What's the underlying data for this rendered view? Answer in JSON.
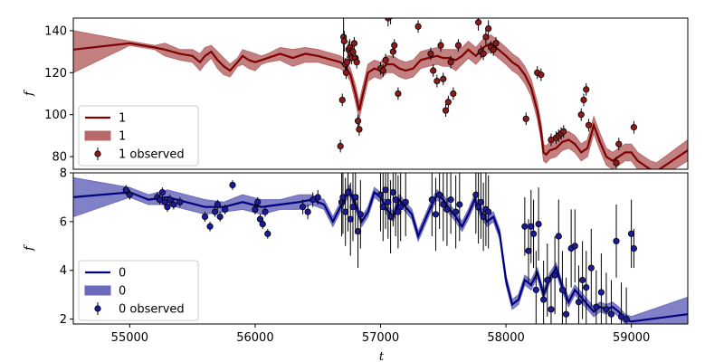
{
  "chart_data": [
    {
      "type": "line",
      "panel": "top",
      "xlabel": "",
      "ylabel": "f",
      "xlim": [
        54550,
        59450
      ],
      "ylim": [
        74,
        146
      ],
      "yticks": [
        80,
        100,
        120,
        140
      ],
      "colors": {
        "line": "#7f0000",
        "band": "#b86a6a",
        "points": "#8b1a1a"
      },
      "legend": {
        "placement": "lower-left",
        "entries": [
          "1",
          "1",
          "1 observed"
        ]
      },
      "series": [
        {
          "name": "1",
          "kind": "model",
          "x": [
            54550,
            55000,
            55200,
            55280,
            55400,
            55500,
            55560,
            55600,
            55650,
            55700,
            55750,
            55800,
            55860,
            55900,
            55950,
            56000,
            56050,
            56100,
            56200,
            56300,
            56400,
            56500,
            56560,
            56620,
            56680,
            56720,
            56760,
            56800,
            56830,
            56860,
            56900,
            56950,
            57000,
            57050,
            57100,
            57150,
            57200,
            57260,
            57320,
            57380,
            57450,
            57500,
            57550,
            57600,
            57650,
            57700,
            57760,
            57820,
            57880,
            57940,
            58000,
            58050,
            58100,
            58150,
            58200,
            58250,
            58280,
            58300,
            58320,
            58350,
            58400,
            58450,
            58500,
            58550,
            58600,
            58650,
            58700,
            58750,
            58800,
            58850,
            58900,
            58950,
            59000,
            59050,
            59100,
            59150,
            59200,
            59450
          ],
          "y": [
            131,
            134,
            132,
            131,
            129,
            128,
            125,
            128,
            130,
            126,
            123,
            121,
            125,
            128,
            126,
            125,
            126,
            127,
            129,
            127,
            129,
            128,
            127,
            126,
            125,
            123,
            119,
            110,
            102,
            110,
            120,
            122,
            121,
            124,
            124,
            122,
            121,
            122,
            126,
            127,
            128,
            127,
            127,
            126,
            128,
            131,
            128,
            132,
            134,
            131,
            128,
            125,
            123,
            119,
            113,
            102,
            92,
            82,
            81,
            83,
            84,
            87,
            88,
            86,
            82,
            84,
            95,
            87,
            80,
            78,
            80,
            82,
            82,
            78,
            76,
            74,
            73,
            83
          ],
          "band_upper": [
            140,
            135,
            133,
            134,
            131,
            131,
            129,
            132,
            133,
            130,
            127,
            124,
            127,
            131,
            130,
            129,
            128,
            129,
            132,
            131,
            132,
            131,
            130,
            129,
            128,
            126,
            122,
            114,
            106,
            114,
            124,
            126,
            125,
            128,
            128,
            126,
            125,
            126,
            130,
            131,
            132,
            131,
            131,
            131,
            132,
            135,
            132,
            136,
            138,
            135,
            132,
            129,
            127,
            123,
            117,
            106,
            96,
            86,
            85,
            87,
            88,
            91,
            92,
            90,
            86,
            88,
            99,
            91,
            84,
            82,
            84,
            86,
            86,
            82,
            80,
            78,
            77,
            88
          ],
          "band_lower": [
            120,
            133,
            131,
            128,
            126,
            125,
            121,
            124,
            127,
            122,
            119,
            118,
            123,
            124,
            122,
            121,
            124,
            125,
            126,
            123,
            125,
            125,
            124,
            123,
            122,
            120,
            116,
            106,
            98,
            106,
            116,
            118,
            117,
            120,
            120,
            118,
            117,
            118,
            122,
            123,
            124,
            123,
            123,
            121,
            124,
            127,
            124,
            128,
            130,
            127,
            124,
            121,
            119,
            115,
            109,
            98,
            88,
            78,
            77,
            79,
            80,
            83,
            84,
            82,
            78,
            80,
            91,
            83,
            76,
            74,
            76,
            78,
            78,
            74,
            72,
            70,
            69,
            78
          ]
        },
        {
          "name": "1 observed",
          "kind": "observed",
          "x": [
            56680,
            56695,
            56705,
            56710,
            56720,
            56725,
            56735,
            56745,
            56755,
            56760,
            56770,
            56780,
            56790,
            56800,
            56810,
            56820,
            56830,
            57000,
            57020,
            57040,
            57060,
            57080,
            57100,
            57110,
            57140,
            57300,
            57400,
            57420,
            57450,
            57480,
            57500,
            57520,
            57540,
            57560,
            57580,
            57620,
            57780,
            57800,
            57820,
            57840,
            57860,
            57880,
            57900,
            57920,
            58160,
            58250,
            58280,
            58360,
            58400,
            58420,
            58440,
            58460,
            58600,
            58620,
            58640,
            58660,
            58880,
            58900,
            59020
          ],
          "y": [
            85,
            107,
            137,
            135,
            124,
            120,
            125,
            131,
            132,
            129,
            127,
            130,
            134,
            127,
            125,
            97,
            93,
            122,
            121,
            126,
            146,
            147,
            130,
            133,
            110,
            142,
            129,
            121,
            116,
            133,
            117,
            102,
            106,
            125,
            110,
            133,
            144,
            130,
            129,
            137,
            141,
            132,
            131,
            134,
            98,
            120,
            119,
            88,
            89,
            90,
            91,
            92,
            100,
            107,
            112,
            95,
            77,
            86,
            94
          ],
          "yerr": [
            3,
            3,
            12,
            5,
            3,
            3,
            3,
            4,
            4,
            3,
            3,
            3,
            3,
            3,
            3,
            3,
            3,
            3,
            3,
            3,
            4,
            4,
            3,
            3,
            3,
            3,
            3,
            3,
            3,
            3,
            3,
            3,
            3,
            3,
            3,
            3,
            4,
            3,
            3,
            4,
            4,
            3,
            3,
            3,
            3,
            3,
            3,
            3,
            3,
            3,
            3,
            3,
            3,
            3,
            3,
            3,
            3,
            3,
            3
          ]
        }
      ]
    },
    {
      "type": "line",
      "panel": "bottom",
      "xlabel": "t",
      "ylabel": "f",
      "xlim": [
        54550,
        59450
      ],
      "ylim": [
        1.8,
        8.0
      ],
      "yticks": [
        2,
        4,
        6,
        8
      ],
      "xticks": [
        55000,
        56000,
        57000,
        58000,
        59000
      ],
      "colors": {
        "line": "#00007f",
        "band": "#6b6bbd",
        "points": "#1a1a9a"
      },
      "legend": {
        "placement": "lower-left",
        "entries": [
          "0",
          "0",
          "0 observed"
        ]
      },
      "series": [
        {
          "name": "0",
          "kind": "model",
          "x": [
            54550,
            55000,
            55150,
            55300,
            55450,
            55600,
            55750,
            55900,
            56050,
            56200,
            56350,
            56450,
            56550,
            56620,
            56700,
            56750,
            56800,
            56850,
            56900,
            56950,
            57000,
            57050,
            57100,
            57150,
            57200,
            57250,
            57300,
            57350,
            57400,
            57450,
            57500,
            57550,
            57600,
            57650,
            57700,
            57750,
            57800,
            57850,
            57900,
            57950,
            58000,
            58050,
            58100,
            58150,
            58200,
            58250,
            58300,
            58350,
            58400,
            58450,
            58500,
            58550,
            58600,
            58650,
            58700,
            58750,
            58800,
            58850,
            58900,
            58950,
            59000,
            59450
          ],
          "y": [
            7.0,
            7.2,
            6.9,
            7.0,
            6.8,
            6.6,
            6.6,
            6.8,
            6.6,
            6.7,
            6.8,
            6.9,
            6.7,
            6.0,
            6.8,
            7.3,
            6.7,
            6.0,
            6.4,
            7.2,
            7.0,
            6.5,
            6.2,
            6.9,
            6.6,
            6.3,
            5.4,
            6.0,
            6.6,
            7.1,
            6.9,
            6.5,
            6.2,
            5.8,
            6.3,
            6.9,
            6.4,
            6.0,
            6.2,
            5.5,
            3.6,
            2.6,
            2.8,
            3.6,
            3.4,
            3.9,
            3.0,
            3.7,
            4.1,
            3.3,
            2.7,
            3.2,
            2.9,
            2.6,
            2.3,
            2.5,
            2.4,
            2.5,
            2.3,
            2.0,
            1.9,
            2.2
          ],
          "band_upper": [
            7.8,
            7.4,
            7.1,
            7.3,
            7.1,
            6.9,
            6.8,
            7.1,
            6.9,
            6.9,
            7.1,
            7.1,
            6.9,
            6.2,
            7.0,
            7.5,
            6.9,
            6.2,
            6.6,
            7.4,
            7.2,
            6.7,
            6.4,
            7.1,
            6.8,
            6.5,
            5.6,
            6.2,
            6.8,
            7.3,
            7.1,
            6.7,
            6.4,
            6.0,
            6.5,
            7.1,
            6.6,
            6.2,
            6.4,
            5.7,
            3.8,
            2.8,
            3.0,
            3.8,
            3.6,
            4.1,
            3.2,
            3.9,
            4.3,
            3.5,
            2.9,
            3.4,
            3.1,
            2.8,
            2.5,
            2.7,
            2.6,
            2.7,
            2.5,
            2.2,
            2.1,
            2.9
          ],
          "band_lower": [
            6.2,
            7.0,
            6.7,
            6.7,
            6.5,
            6.3,
            6.4,
            6.5,
            6.3,
            6.5,
            6.5,
            6.7,
            6.5,
            5.8,
            6.6,
            7.1,
            6.5,
            5.8,
            6.2,
            7.0,
            6.8,
            6.3,
            6.0,
            6.7,
            6.4,
            6.1,
            5.2,
            5.8,
            6.4,
            6.9,
            6.7,
            6.3,
            6.0,
            5.6,
            6.1,
            6.7,
            6.2,
            5.8,
            6.0,
            5.3,
            3.4,
            2.4,
            2.6,
            3.4,
            3.2,
            3.7,
            2.8,
            3.5,
            3.9,
            3.1,
            2.5,
            3.0,
            2.7,
            2.4,
            2.1,
            2.3,
            2.2,
            2.3,
            2.1,
            1.8,
            1.7,
            1.5
          ]
        },
        {
          "name": "0 observed",
          "kind": "observed",
          "x": [
            54970,
            55000,
            55220,
            55240,
            55260,
            55280,
            55300,
            55320,
            55350,
            55400,
            55600,
            55640,
            55680,
            55700,
            55720,
            55760,
            55820,
            56000,
            56020,
            56040,
            56060,
            56080,
            56100,
            56380,
            56420,
            56460,
            56500,
            56690,
            56700,
            56720,
            56740,
            56760,
            56780,
            56800,
            56820,
            56840,
            57000,
            57020,
            57040,
            57060,
            57080,
            57100,
            57120,
            57140,
            57160,
            57200,
            57410,
            57440,
            57470,
            57500,
            57530,
            57560,
            57600,
            57630,
            57760,
            57780,
            57800,
            57820,
            57840,
            57860,
            58150,
            58180,
            58200,
            58220,
            58240,
            58260,
            58300,
            58330,
            58360,
            58390,
            58420,
            58450,
            58480,
            58520,
            58550,
            58580,
            58610,
            58640,
            58680,
            58720,
            58760,
            58800,
            58840,
            58880,
            58920,
            58960,
            59000,
            59020
          ],
          "y": [
            7.3,
            7.1,
            7.0,
            6.9,
            7.2,
            6.8,
            6.6,
            6.9,
            6.7,
            6.8,
            6.2,
            5.8,
            6.4,
            6.7,
            6.2,
            6.5,
            7.5,
            6.5,
            6.8,
            6.1,
            5.9,
            6.4,
            5.5,
            6.6,
            6.4,
            6.9,
            7.0,
            6.8,
            7.0,
            6.4,
            7.2,
            6.1,
            6.6,
            7.0,
            5.6,
            6.3,
            7.1,
            6.6,
            7.3,
            6.8,
            6.2,
            7.2,
            6.9,
            6.4,
            6.6,
            6.8,
            6.9,
            6.3,
            7.1,
            6.7,
            6.5,
            6.9,
            6.4,
            6.7,
            7.1,
            6.6,
            6.8,
            6.2,
            6.5,
            6.4,
            5.8,
            4.8,
            5.8,
            5.5,
            3.2,
            5.9,
            2.8,
            3.6,
            2.4,
            3.8,
            5.4,
            3.2,
            2.2,
            4.9,
            5.0,
            2.7,
            3.6,
            3.3,
            4.1,
            2.5,
            3.1,
            2.4,
            2.2,
            5.2,
            2.1,
            2.0,
            5.5,
            4.9
          ],
          "yerr": [
            0.2,
            0.2,
            0.2,
            0.2,
            0.2,
            0.2,
            0.2,
            0.2,
            0.2,
            0.2,
            0.2,
            0.2,
            0.2,
            0.2,
            0.2,
            0.2,
            0.2,
            0.2,
            0.2,
            0.2,
            0.2,
            0.2,
            0.2,
            0.3,
            0.3,
            0.3,
            0.3,
            1.4,
            1.5,
            1.4,
            1.6,
            1.5,
            1.4,
            1.5,
            1.5,
            1.4,
            1.5,
            1.4,
            1.6,
            1.5,
            1.5,
            1.4,
            1.5,
            1.5,
            1.4,
            1.4,
            1.5,
            1.5,
            1.4,
            1.5,
            1.5,
            1.4,
            1.5,
            1.5,
            1.6,
            1.5,
            1.5,
            1.4,
            1.5,
            1.5,
            1.2,
            1.3,
            1.5,
            1.4,
            1.6,
            1.5,
            1.6,
            1.5,
            1.4,
            1.6,
            1.5,
            1.6,
            1.5,
            1.6,
            1.5,
            1.5,
            1.6,
            1.5,
            1.6,
            1.5,
            1.6,
            1.5,
            1.4,
            1.5,
            1.4,
            1.3,
            1.4,
            0.8
          ]
        }
      ]
    }
  ]
}
